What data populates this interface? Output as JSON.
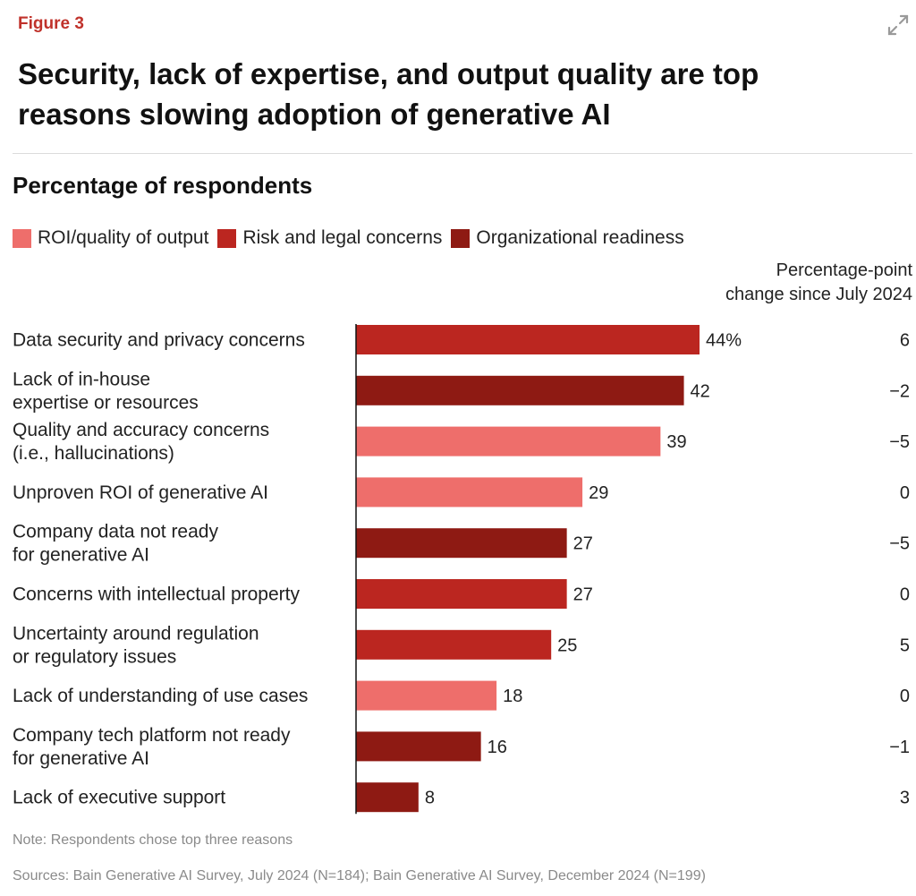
{
  "figure_label": "Figure 3",
  "title": "Security, lack of expertise, and output quality are top reasons slowing adoption of generative AI",
  "expand_icon": "expand-arrows-icon",
  "colors": {
    "roi": "#ee6e6b",
    "risk": "#bb2620",
    "org": "#8e1a13",
    "accent": "#c0322b",
    "axis": "#111111"
  },
  "chart_data": {
    "type": "bar",
    "orientation": "horizontal",
    "title": "Percentage of respondents",
    "legend": [
      {
        "key": "roi",
        "label": "ROI/quality of output"
      },
      {
        "key": "risk",
        "label": "Risk and legal concerns"
      },
      {
        "key": "org",
        "label": "Organizational readiness"
      }
    ],
    "change_header": [
      "Percentage-point",
      "change since July 2024"
    ],
    "xlim": [
      0,
      50
    ],
    "unit": "%",
    "categories": [
      {
        "label": [
          "Data security and privacy concerns"
        ],
        "value": 44,
        "value_label": "44%",
        "group": "risk",
        "change": "6"
      },
      {
        "label": [
          "Lack of in-house",
          "expertise or resources"
        ],
        "value": 42,
        "value_label": "42",
        "group": "org",
        "change": "−2"
      },
      {
        "label": [
          "Quality and accuracy concerns",
          "(i.e., hallucinations)"
        ],
        "value": 39,
        "value_label": "39",
        "group": "roi",
        "change": "−5"
      },
      {
        "label": [
          "Unproven ROI of generative AI"
        ],
        "value": 29,
        "value_label": "29",
        "group": "roi",
        "change": "0"
      },
      {
        "label": [
          "Company data not ready",
          "for generative AI"
        ],
        "value": 27,
        "value_label": "27",
        "group": "org",
        "change": "−5"
      },
      {
        "label": [
          "Concerns with intellectual property"
        ],
        "value": 27,
        "value_label": "27",
        "group": "risk",
        "change": "0"
      },
      {
        "label": [
          "Uncertainty around regulation",
          "or regulatory issues"
        ],
        "value": 25,
        "value_label": "25",
        "group": "risk",
        "change": "5"
      },
      {
        "label": [
          "Lack of understanding of use cases"
        ],
        "value": 18,
        "value_label": "18",
        "group": "roi",
        "change": "0"
      },
      {
        "label": [
          "Company tech platform not ready",
          "for generative AI"
        ],
        "value": 16,
        "value_label": "16",
        "group": "org",
        "change": "−1"
      },
      {
        "label": [
          "Lack of executive support"
        ],
        "value": 8,
        "value_label": "8",
        "group": "org",
        "change": "3"
      }
    ]
  },
  "note": "Note: Respondents chose top three reasons",
  "sources": "Sources: Bain Generative AI Survey, July 2024 (N=184); Bain Generative AI Survey, December 2024 (N=199)"
}
